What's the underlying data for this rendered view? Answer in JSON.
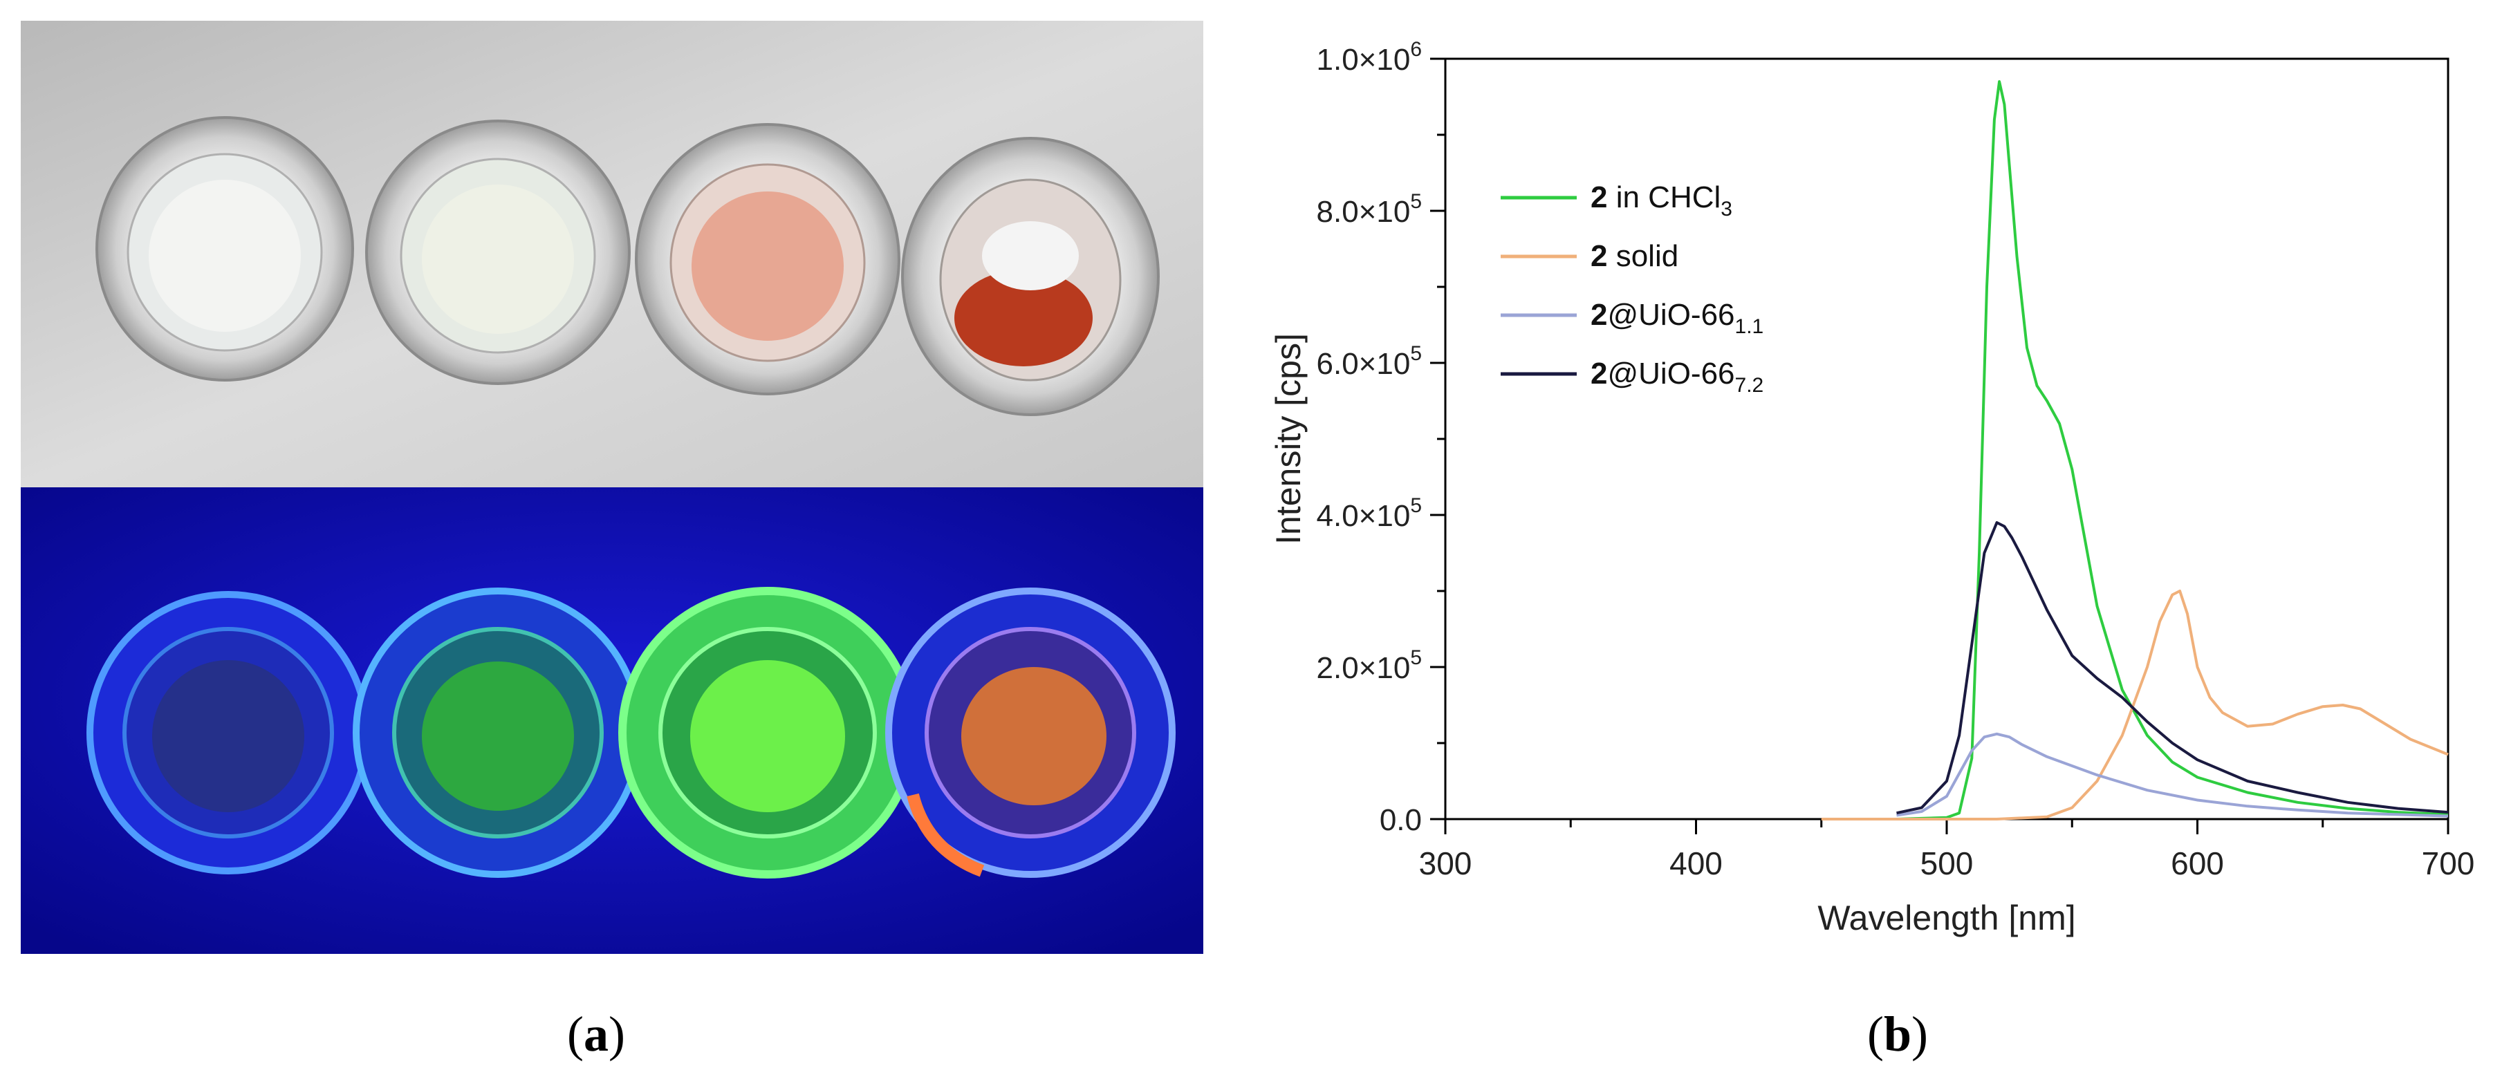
{
  "panels": {
    "a": {
      "caption": "a"
    },
    "b": {
      "caption": "b"
    }
  },
  "chart_data": {
    "type": "line",
    "title": "",
    "xlabel": "Wavelength [nm]",
    "ylabel": "Intensity [cps]",
    "xlim": [
      300,
      700
    ],
    "ylim": [
      0,
      1000000
    ],
    "x_ticks": [
      "300",
      "400",
      "500",
      "600",
      "700"
    ],
    "y_ticks": [
      {
        "mantissa": "0.0",
        "exp": ""
      },
      {
        "mantissa": "2.0",
        "exp": "5"
      },
      {
        "mantissa": "4.0",
        "exp": "5"
      },
      {
        "mantissa": "6.0",
        "exp": "5"
      },
      {
        "mantissa": "8.0",
        "exp": "5"
      },
      {
        "mantissa": "1.0",
        "exp": "6"
      }
    ],
    "grid": false,
    "legend_position": "top-left",
    "series": [
      {
        "name": "2 in CHCl3",
        "legend": {
          "bold": "2",
          "text": " in CHCl",
          "sub": "3"
        },
        "color": "#2ecc40",
        "x": [
          480,
          500,
          505,
          510,
          513,
          516,
          519,
          521,
          523,
          525,
          528,
          532,
          536,
          540,
          545,
          550,
          555,
          560,
          570,
          580,
          590,
          600,
          620,
          640,
          660,
          680,
          700
        ],
        "y": [
          0,
          2000,
          8000,
          80000,
          350000,
          700000,
          920000,
          970000,
          940000,
          860000,
          740000,
          620000,
          570000,
          550000,
          520000,
          460000,
          370000,
          280000,
          170000,
          110000,
          75000,
          55000,
          35000,
          22000,
          14000,
          9000,
          6000
        ]
      },
      {
        "name": "2 solid",
        "legend": {
          "bold": "2",
          "text": " solid",
          "sub": ""
        },
        "color": "#f0b07a",
        "x": [
          450,
          480,
          520,
          540,
          550,
          560,
          570,
          580,
          585,
          590,
          593,
          596,
          600,
          605,
          610,
          620,
          630,
          640,
          650,
          658,
          665,
          675,
          685,
          700
        ],
        "y": [
          0,
          0,
          0,
          3000,
          15000,
          50000,
          110000,
          200000,
          260000,
          295000,
          300000,
          270000,
          200000,
          160000,
          140000,
          122000,
          125000,
          138000,
          148000,
          150000,
          145000,
          125000,
          105000,
          85000
        ]
      },
      {
        "name": "2@UiO-66 1.1",
        "legend": {
          "bold": "2",
          "text": "@UiO-66",
          "sub": "1.1"
        },
        "color": "#9aa4d6",
        "x": [
          480,
          490,
          500,
          505,
          510,
          515,
          520,
          525,
          530,
          540,
          550,
          560,
          580,
          600,
          620,
          640,
          660,
          680,
          700
        ],
        "y": [
          5000,
          10000,
          30000,
          60000,
          90000,
          108000,
          112000,
          108000,
          98000,
          82000,
          70000,
          58000,
          38000,
          25000,
          17000,
          12000,
          8000,
          6000,
          4000
        ]
      },
      {
        "name": "2@UiO-66 7.2",
        "legend": {
          "bold": "2",
          "text": "@UiO-66",
          "sub": "7.2"
        },
        "color": "#1a1a40",
        "x": [
          480,
          490,
          500,
          505,
          510,
          515,
          520,
          523,
          526,
          530,
          535,
          540,
          545,
          550,
          555,
          560,
          570,
          580,
          590,
          600,
          620,
          640,
          660,
          680,
          700
        ],
        "y": [
          8000,
          15000,
          50000,
          110000,
          230000,
          350000,
          390000,
          385000,
          370000,
          345000,
          310000,
          275000,
          245000,
          215000,
          200000,
          185000,
          160000,
          128000,
          100000,
          78000,
          50000,
          35000,
          22000,
          14000,
          9000
        ]
      }
    ]
  }
}
